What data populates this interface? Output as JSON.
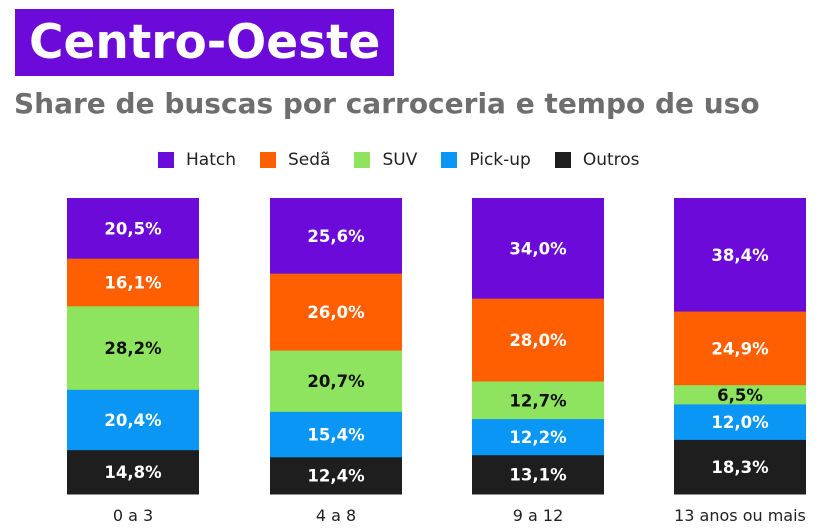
{
  "title": "Centro-Oeste",
  "subtitle": "Share de buscas por carroceria e tempo de uso",
  "chart_data": {
    "type": "bar",
    "stacked": true,
    "categories": [
      "0 a 3",
      "4 a 8",
      "9 a 12",
      "13 anos ou mais"
    ],
    "series": [
      {
        "name": "Hatch",
        "color": "#6b0ad9",
        "label_color": "#ffffff",
        "values": [
          20.5,
          25.6,
          34.0,
          38.4
        ],
        "labels": [
          "20,5%",
          "25,6%",
          "34,0%",
          "38,4%"
        ]
      },
      {
        "name": "Sedã",
        "color": "#ff5f00",
        "label_color": "#ffffff",
        "values": [
          16.1,
          26.0,
          28.0,
          24.9
        ],
        "labels": [
          "16,1%",
          "26,0%",
          "28,0%",
          "24,9%"
        ]
      },
      {
        "name": "SUV",
        "color": "#8ee45e",
        "label_color": "#111111",
        "values": [
          28.2,
          20.7,
          12.7,
          6.5
        ],
        "labels": [
          "28,2%",
          "20,7%",
          "12,7%",
          "6,5%"
        ]
      },
      {
        "name": "Pick-up",
        "color": "#0a96f5",
        "label_color": "#ffffff",
        "values": [
          20.4,
          15.4,
          12.2,
          12.0
        ],
        "labels": [
          "20,4%",
          "15,4%",
          "12,2%",
          "12,0%"
        ]
      },
      {
        "name": "Outros",
        "color": "#1e1e1e",
        "label_color": "#ffffff",
        "values": [
          14.8,
          12.4,
          13.1,
          18.3
        ],
        "labels": [
          "14,8%",
          "12,4%",
          "13,1%",
          "18,3%"
        ]
      }
    ],
    "legend_position": "top",
    "grid": false
  }
}
